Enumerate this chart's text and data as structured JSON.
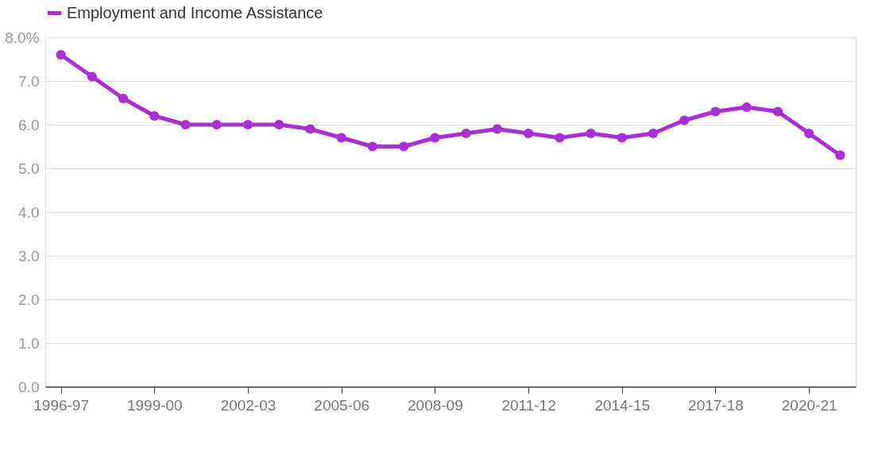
{
  "chart_data": {
    "type": "line",
    "categories": [
      "1996-97",
      null,
      null,
      "1999-00",
      null,
      null,
      "2002-03",
      null,
      null,
      "2005-06",
      null,
      null,
      "2008-09",
      null,
      null,
      "2011-12",
      null,
      null,
      "2014-15",
      null,
      null,
      "2017-18",
      null,
      null,
      "2020-21",
      null
    ],
    "series": [
      {
        "name": "Employment and Income Assistance",
        "color": "#a92fd4",
        "values": [
          7.6,
          7.1,
          6.6,
          6.2,
          6.0,
          6.0,
          6.0,
          6.0,
          5.9,
          5.7,
          5.5,
          5.5,
          5.7,
          5.8,
          5.9,
          5.8,
          5.7,
          5.8,
          5.7,
          5.8,
          6.1,
          6.3,
          6.4,
          6.3,
          5.8,
          5.3
        ]
      }
    ],
    "ylim": [
      0,
      8
    ],
    "yticks": [
      {
        "value": 0,
        "label": "0.0"
      },
      {
        "value": 1,
        "label": "1.0"
      },
      {
        "value": 2,
        "label": "2.0"
      },
      {
        "value": 3,
        "label": "3.0"
      },
      {
        "value": 4,
        "label": "4.0"
      },
      {
        "value": 5,
        "label": "5.0"
      },
      {
        "value": 6,
        "label": "6.0"
      },
      {
        "value": 7,
        "label": "7.0"
      },
      {
        "value": 8,
        "label": "8.0%"
      }
    ],
    "grid": "y",
    "legend": "top left",
    "marker": "circle",
    "line_style": "solid"
  }
}
